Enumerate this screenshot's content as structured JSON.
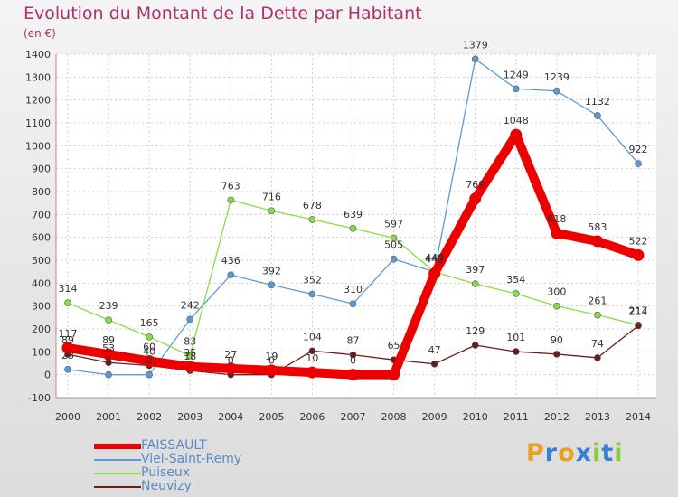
{
  "chart_data": {
    "type": "line",
    "title": "Evolution du Montant de la Dette par Habitant",
    "subtitle": "(en €)",
    "x": [
      "2000",
      "2001",
      "2002",
      "2003",
      "2004",
      "2005",
      "2006",
      "2007",
      "2008",
      "2009",
      "2010",
      "2011",
      "2012",
      "2013",
      "2014"
    ],
    "ylim": [
      -100,
      1400
    ],
    "yticks": [
      -100,
      0,
      100,
      200,
      300,
      400,
      500,
      600,
      700,
      800,
      900,
      1000,
      1100,
      1200,
      1300,
      1400
    ],
    "grid": true,
    "legend_position": "bottom-left",
    "series": [
      {
        "name": "FAISSAULT",
        "color": "#ee0000",
        "values": [
          117,
          89,
          60,
          35,
          27,
          19,
          10,
          0,
          0,
          442,
          769,
          1048,
          618,
          583,
          522
        ],
        "labels": [
          "117",
          "89",
          "60",
          "35",
          "27",
          "19",
          "10",
          "0",
          "",
          "442",
          "769",
          "1048",
          "618",
          "583",
          "522"
        ]
      },
      {
        "name": "Viel-Saint-Remy",
        "color": "#5b9bd5",
        "values": [
          23,
          0,
          0,
          242,
          436,
          392,
          352,
          310,
          505,
          449,
          1379,
          1249,
          1239,
          1132,
          922
        ],
        "labels": [
          "23",
          "0",
          "0",
          "242",
          "436",
          "392",
          "352",
          "310",
          "505",
          "449",
          "1379",
          "1249",
          "1239",
          "1132",
          "922"
        ]
      },
      {
        "name": "Puiseux",
        "color": "#88dd44",
        "values": [
          314,
          239,
          165,
          83,
          763,
          716,
          678,
          639,
          597,
          449,
          397,
          354,
          300,
          261,
          217
        ],
        "labels": [
          "314",
          "239",
          "165",
          "83",
          "763",
          "716",
          "678",
          "639",
          "597",
          "449",
          "397",
          "354",
          "300",
          "261",
          "217"
        ]
      },
      {
        "name": "Neuvizy",
        "color": "#6b1d1d",
        "values": [
          89,
          53,
          40,
          18,
          0,
          0,
          104,
          87,
          65,
          47,
          129,
          101,
          90,
          74,
          214
        ],
        "labels": [
          "89",
          "53",
          "40",
          "18",
          "0",
          "0",
          "104",
          "87",
          "65",
          "47",
          "129",
          "101",
          "90",
          "74",
          "214"
        ]
      }
    ]
  },
  "logo": {
    "letters": [
      "P",
      "r",
      "o",
      "x",
      "i",
      "t",
      "i"
    ],
    "colors": [
      "#e8a020",
      "#3b7fd0",
      "#e8a020",
      "#3b7fd0",
      "#88cc33",
      "#3b7fd0",
      "#88cc33"
    ]
  }
}
